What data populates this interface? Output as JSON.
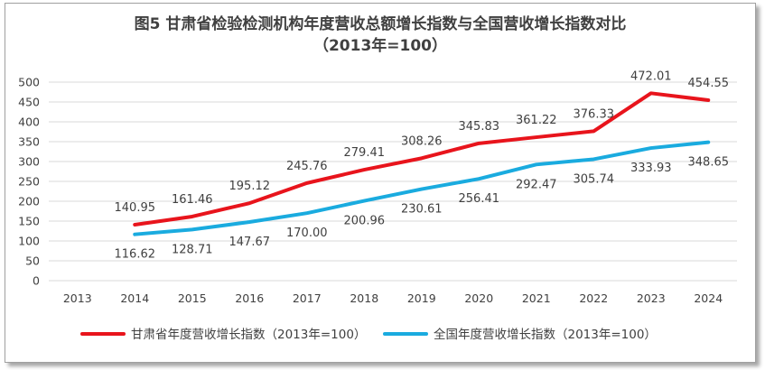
{
  "chart_data": {
    "type": "line",
    "title": "图5   甘肃省检验检测机构年度营收总额增长指数与全国营收增长指数对比",
    "subtitle": "（2013年=100）",
    "categories": [
      "2013",
      "2014",
      "2015",
      "2016",
      "2017",
      "2018",
      "2019",
      "2020",
      "2021",
      "2022",
      "2023",
      "2024"
    ],
    "ylim": [
      0,
      500
    ],
    "yticks": [
      0,
      50,
      100,
      150,
      200,
      250,
      300,
      350,
      400,
      450,
      500
    ],
    "ytick_labels": [
      "0",
      "50",
      "100",
      "150",
      "200",
      "250",
      "300",
      "350",
      "400",
      "450",
      "500"
    ],
    "grid": true,
    "legend_position": "bottom",
    "series": [
      {
        "name": "甘肃省年度营收增长指数（2013年=100）",
        "color": "#e8141c",
        "label_position": "above",
        "values": [
          null,
          140.95,
          161.46,
          195.12,
          245.76,
          279.41,
          308.26,
          345.83,
          361.22,
          376.33,
          472.01,
          454.55
        ],
        "labels": [
          "",
          "140.95",
          "161.46",
          "195.12",
          "245.76",
          "279.41",
          "308.26",
          "345.83",
          "361.22",
          "376.33",
          "472.01",
          "454.55"
        ]
      },
      {
        "name": "全国年度营收增长指数（2013年=100）",
        "color": "#1aabdf",
        "label_position": "below",
        "values": [
          null,
          116.62,
          128.71,
          147.67,
          170.0,
          200.96,
          230.61,
          256.41,
          292.47,
          305.74,
          333.93,
          348.65
        ],
        "labels": [
          "",
          "116.62",
          "128.71",
          "147.67",
          "170.00",
          "200.96",
          "230.61",
          "256.41",
          "292.47",
          "305.74",
          "333.93",
          "348.65"
        ]
      }
    ]
  }
}
